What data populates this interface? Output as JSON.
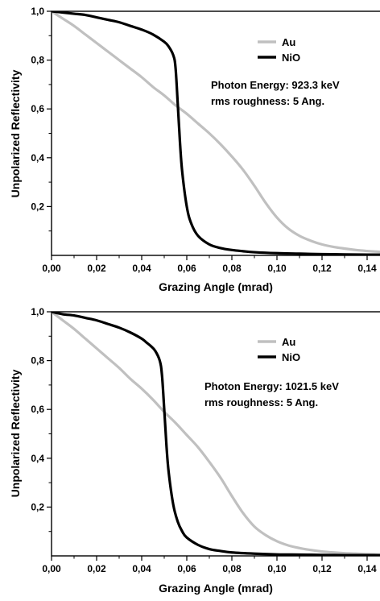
{
  "chart_data": [
    {
      "type": "line",
      "xlabel": "Grazing Angle (mrad)",
      "ylabel": "Unpolarized Reflectivity",
      "xlim": [
        0,
        0.15
      ],
      "ylim": [
        0,
        1.0
      ],
      "x_ticks": [
        "0,00",
        "0,02",
        "0,04",
        "0,06",
        "0,08",
        "0,10",
        "0,12",
        "0,14"
      ],
      "y_ticks": [
        "0,2",
        "0,4",
        "0,6",
        "0,8",
        "1,0"
      ],
      "legend_position": "top-right",
      "annotations": [
        "Photon Energy: 923.3 keV",
        "rms roughness: 5 Ang."
      ],
      "series": [
        {
          "name": "Au",
          "color": "#c0c0c0",
          "x": [
            0,
            0.005,
            0.01,
            0.015,
            0.02,
            0.025,
            0.03,
            0.035,
            0.04,
            0.045,
            0.05,
            0.055,
            0.06,
            0.065,
            0.07,
            0.075,
            0.08,
            0.085,
            0.09,
            0.095,
            0.1,
            0.105,
            0.11,
            0.115,
            0.12,
            0.125,
            0.13,
            0.135,
            0.14,
            0.145,
            0.15
          ],
          "y": [
            1.0,
            0.97,
            0.94,
            0.905,
            0.87,
            0.835,
            0.8,
            0.765,
            0.73,
            0.69,
            0.655,
            0.615,
            0.58,
            0.54,
            0.5,
            0.455,
            0.405,
            0.35,
            0.285,
            0.215,
            0.155,
            0.11,
            0.08,
            0.06,
            0.045,
            0.035,
            0.028,
            0.022,
            0.018,
            0.015,
            0.013
          ]
        },
        {
          "name": "NiO",
          "color": "#000000",
          "x": [
            0,
            0.005,
            0.01,
            0.015,
            0.02,
            0.025,
            0.03,
            0.035,
            0.04,
            0.045,
            0.05,
            0.052,
            0.054,
            0.055,
            0.056,
            0.057,
            0.058,
            0.06,
            0.062,
            0.065,
            0.07,
            0.075,
            0.08,
            0.085,
            0.09,
            0.1,
            0.11,
            0.12,
            0.13,
            0.14,
            0.15
          ],
          "y": [
            1.0,
            0.995,
            0.99,
            0.985,
            0.975,
            0.965,
            0.955,
            0.94,
            0.925,
            0.905,
            0.875,
            0.855,
            0.82,
            0.77,
            0.62,
            0.46,
            0.34,
            0.2,
            0.13,
            0.08,
            0.045,
            0.03,
            0.022,
            0.017,
            0.013,
            0.009,
            0.007,
            0.005,
            0.004,
            0.003,
            0.003
          ]
        }
      ]
    },
    {
      "type": "line",
      "xlabel": "Grazing Angle (mrad)",
      "ylabel": "Unpolarized Reflectivity",
      "xlim": [
        0,
        0.15
      ],
      "ylim": [
        0,
        1.0
      ],
      "x_ticks": [
        "0,00",
        "0,02",
        "0,04",
        "0,06",
        "0,08",
        "0,10",
        "0,12",
        "0,14"
      ],
      "y_ticks": [
        "0,2",
        "0,4",
        "0,6",
        "0,8",
        "1,0"
      ],
      "legend_position": "top-right",
      "annotations": [
        "Photon Energy: 1021.5 keV",
        "rms roughness: 5 Ang."
      ],
      "series": [
        {
          "name": "Au",
          "color": "#c0c0c0",
          "x": [
            0,
            0.005,
            0.01,
            0.015,
            0.02,
            0.025,
            0.03,
            0.035,
            0.04,
            0.045,
            0.05,
            0.055,
            0.06,
            0.065,
            0.07,
            0.075,
            0.08,
            0.085,
            0.09,
            0.095,
            0.1,
            0.105,
            0.11,
            0.115,
            0.12,
            0.125,
            0.13,
            0.135,
            0.14,
            0.145,
            0.15
          ],
          "y": [
            1.0,
            0.965,
            0.93,
            0.89,
            0.85,
            0.81,
            0.77,
            0.725,
            0.685,
            0.64,
            0.59,
            0.545,
            0.495,
            0.445,
            0.385,
            0.32,
            0.245,
            0.175,
            0.12,
            0.085,
            0.06,
            0.043,
            0.032,
            0.024,
            0.018,
            0.014,
            0.011,
            0.009,
            0.007,
            0.006,
            0.005
          ]
        },
        {
          "name": "NiO",
          "color": "#000000",
          "x": [
            0,
            0.005,
            0.01,
            0.015,
            0.02,
            0.025,
            0.03,
            0.035,
            0.04,
            0.042,
            0.044,
            0.046,
            0.048,
            0.049,
            0.05,
            0.051,
            0.052,
            0.054,
            0.056,
            0.058,
            0.06,
            0.065,
            0.07,
            0.075,
            0.08,
            0.09,
            0.1,
            0.11,
            0.12,
            0.13,
            0.14,
            0.15
          ],
          "y": [
            1.0,
            0.99,
            0.985,
            0.975,
            0.965,
            0.95,
            0.935,
            0.915,
            0.89,
            0.875,
            0.86,
            0.84,
            0.8,
            0.74,
            0.6,
            0.45,
            0.34,
            0.21,
            0.14,
            0.1,
            0.075,
            0.045,
            0.028,
            0.02,
            0.014,
            0.009,
            0.006,
            0.005,
            0.004,
            0.003,
            0.003,
            0.002
          ]
        }
      ]
    }
  ]
}
